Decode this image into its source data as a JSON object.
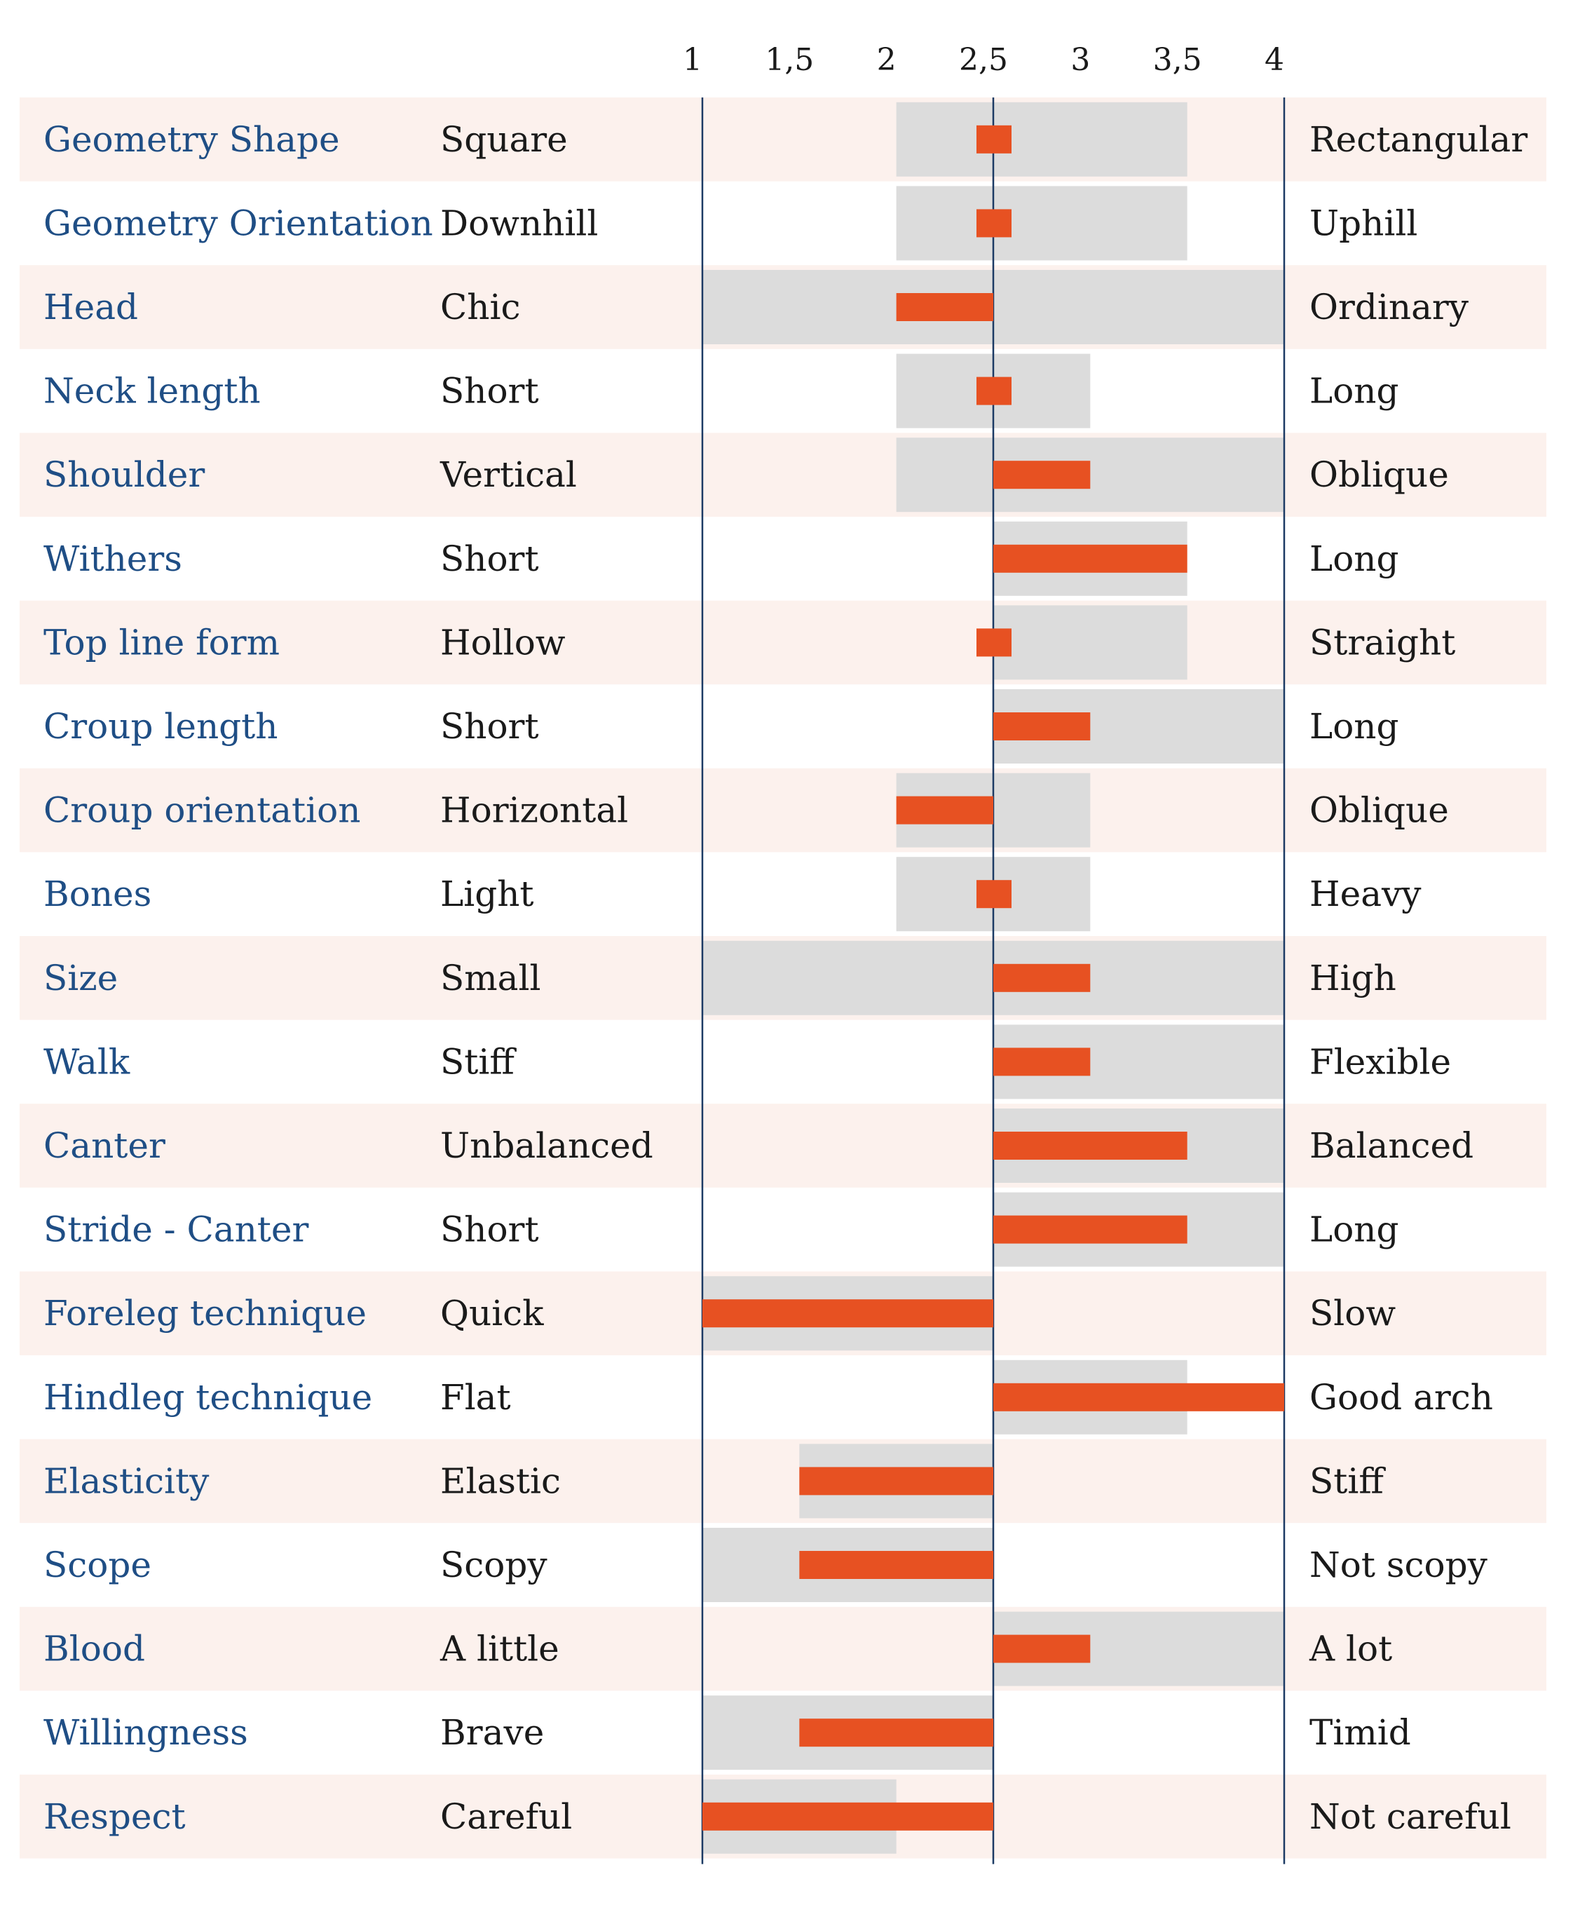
{
  "chart_data": {
    "type": "bar",
    "xticks": [
      "1",
      "1,5",
      "2",
      "2,5",
      "3",
      "3,5",
      "4"
    ],
    "xlim": [
      1,
      4
    ],
    "reference": 2.5,
    "rows": [
      {
        "trait": "Geometry Shape",
        "low": "Square",
        "high": "Rectangular",
        "range": [
          2,
          3.5
        ],
        "value": 2.6
      },
      {
        "trait": "Geometry Orientation",
        "low": "Downhill",
        "high": "Uphill",
        "range": [
          2,
          3.5
        ],
        "value": 2.6
      },
      {
        "trait": "Head",
        "low": "Chic",
        "high": "Ordinary",
        "range": [
          1,
          4
        ],
        "value": 2
      },
      {
        "trait": "Neck length",
        "low": "Short",
        "high": "Long",
        "range": [
          2,
          3
        ],
        "value": 2.6
      },
      {
        "trait": "Shoulder",
        "low": "Vertical",
        "high": "Oblique",
        "range": [
          2,
          4
        ],
        "value": 3
      },
      {
        "trait": "Withers",
        "low": "Short",
        "high": "Long",
        "range": [
          2.5,
          3.5
        ],
        "value": 3.5
      },
      {
        "trait": "Top line form",
        "low": "Hollow",
        "high": "Straight",
        "range": [
          2.5,
          3.5
        ],
        "value": 2.6
      },
      {
        "trait": "Croup length",
        "low": "Short",
        "high": "Long",
        "range": [
          2.5,
          4
        ],
        "value": 3
      },
      {
        "trait": "Croup orientation",
        "low": "Horizontal",
        "high": "Oblique",
        "range": [
          2,
          3
        ],
        "value": 2
      },
      {
        "trait": "Bones",
        "low": "Light",
        "high": "Heavy",
        "range": [
          2,
          3
        ],
        "value": 2.6
      },
      {
        "trait": "Size",
        "low": "Small",
        "high": "High",
        "range": [
          1,
          4
        ],
        "value": 3
      },
      {
        "trait": "Walk",
        "low": "Stiff",
        "high": "Flexible",
        "range": [
          2.5,
          4
        ],
        "value": 3
      },
      {
        "trait": "Canter",
        "low": "Unbalanced",
        "high": "Balanced",
        "range": [
          2.5,
          4
        ],
        "value": 3.5
      },
      {
        "trait": "Stride - Canter",
        "low": "Short",
        "high": "Long",
        "range": [
          2.5,
          4
        ],
        "value": 3.5
      },
      {
        "trait": "Foreleg technique",
        "low": "Quick",
        "high": "Slow",
        "range": [
          1,
          2.5
        ],
        "value": 1
      },
      {
        "trait": "Hindleg technique",
        "low": "Flat",
        "high": "Good arch",
        "range": [
          2.5,
          3.5
        ],
        "value": 4
      },
      {
        "trait": "Elasticity",
        "low": "Elastic",
        "high": "Stiff",
        "range": [
          1.5,
          2.5
        ],
        "value": 1.5
      },
      {
        "trait": "Scope",
        "low": "Scopy",
        "high": "Not scopy",
        "range": [
          1,
          2.5
        ],
        "value": 1.5
      },
      {
        "trait": "Blood",
        "low": "A little",
        "high": "A lot",
        "range": [
          2.5,
          4
        ],
        "value": 3
      },
      {
        "trait": "Willingness",
        "low": "Brave",
        "high": "Timid",
        "range": [
          1,
          2.5
        ],
        "value": 1.5
      },
      {
        "trait": "Respect",
        "low": "Careful",
        "high": "Not careful",
        "range": [
          1,
          2
        ],
        "value": 1
      }
    ],
    "colors": {
      "row_band": "#fcf1ed",
      "range_box": "#dcdcdc",
      "value_bar": "#e75122",
      "axis_line": "#1c3a64",
      "trait_text": "#1f4e85",
      "pole_text": "#1a1a1a"
    }
  }
}
